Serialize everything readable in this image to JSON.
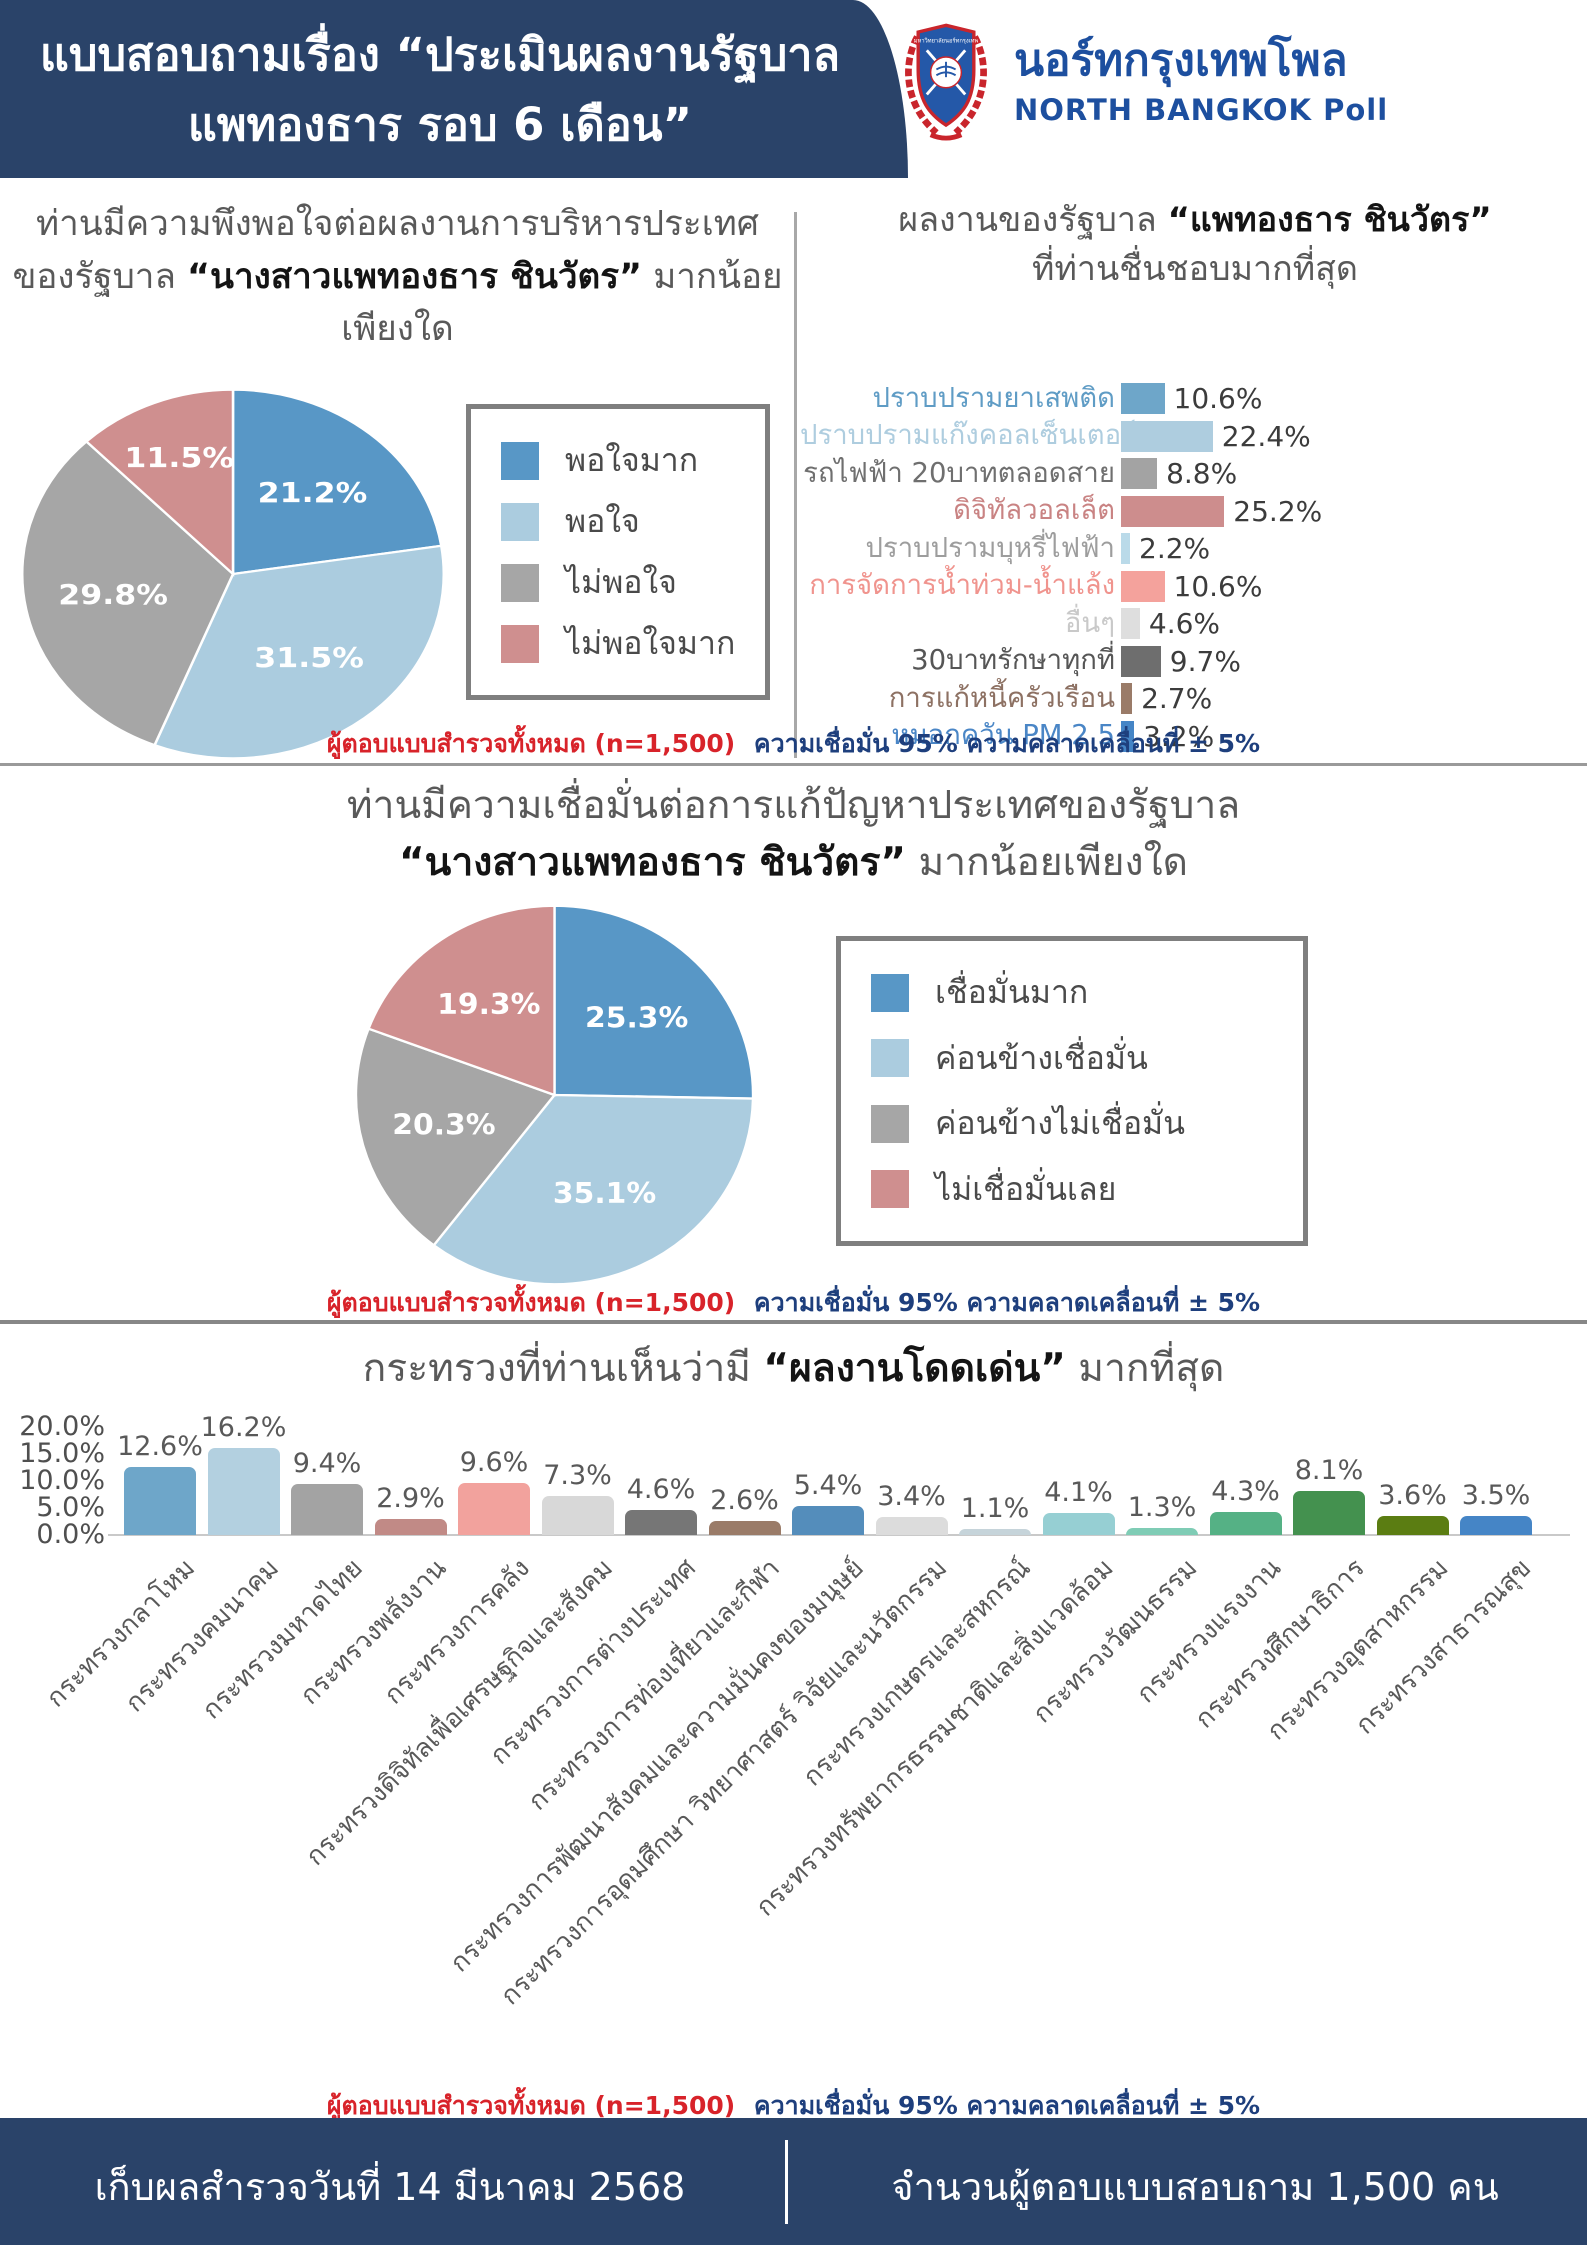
{
  "header": {
    "title_line1": "แบบสอบถามเรื่อง “ประเมินผลงานรัฐบาล",
    "title_line2": "แพทองธาร รอบ 6 เดือน”",
    "org_name_th": "นอร์ทกรุงเทพโพล",
    "org_name_en": "NORTH BANGKOK Poll",
    "crest_text": "มหาวิทยาลัยนอร์ทกรุงเทพ"
  },
  "colors": {
    "navy": "#2a4369",
    "accent_red": "#d8232a",
    "note_blue": "#1e3f7d",
    "text_gray": "#595959",
    "logo_blue": "#1d4f9f"
  },
  "q1": {
    "normal1": "ท่านมีความพึงพอใจต่อผลงานการบริหารประเทศของรัฐบาล ",
    "bold": "“นางสาวแพทองธาร ชินวัตร”",
    "normal2": " มากน้อยเพียงใด"
  },
  "q2": {
    "normal1": "ผลงานของรัฐบาล ",
    "bold": "“แพทองธาร ชินวัตร”",
    "line2": "ที่ท่านชื่นชอบมากที่สุด"
  },
  "q3": {
    "line1": "ท่านมีความเชื่อมั่นต่อการแก้ปัญหาประเทศของรัฐบาล",
    "bold": "“นางสาวแพทองธาร ชินวัตร”",
    "normal2": " มากน้อยเพียงใด"
  },
  "q4": {
    "normal1": "กระทรวงที่ท่านเห็นว่ามี ",
    "bold": "“ผลงานโดดเด่น”",
    "normal2": " มากที่สุด"
  },
  "note": {
    "red": "ผู้ตอบแบบสำรวจทั้งหมด (n=1,500)",
    "blue": "ความเชื่อมั่น 95% ความคลาดเคลื่อนที่ ± 5%"
  },
  "footer": {
    "left": "เก็บผลสำรวจวันที่ 14 มีนาคม 2568",
    "right": "จำนวนผู้ตอบแบบสอบถาม 1,500 คน"
  },
  "chart_data": [
    {
      "type": "pie",
      "title": "ท่านมีความพึงพอใจต่อผลงานการบริหารประเทศของรัฐบาล “นางสาวแพทองธาร ชินวัตร” มากน้อยเพียงใด",
      "labels": [
        "พอใจมาก",
        "พอใจ",
        "ไม่พอใจ",
        "ไม่พอใจมาก"
      ],
      "values": [
        21.2,
        31.5,
        29.8,
        11.5
      ],
      "colors": [
        "#5897c6",
        "#abccdf",
        "#a6a6a6",
        "#cf8f8f"
      ],
      "legend_position": "right",
      "start_angle": "12-oclock-clockwise"
    },
    {
      "type": "bar",
      "orientation": "horizontal",
      "title": "ผลงานของรัฐบาล “แพทองธาร ชินวัตร” ที่ท่านชื่นชอบมากที่สุด",
      "categories": [
        "ปราบปรามยาเสพติด",
        "ปราบปรามแก๊งคอลเซ็นเตอร์",
        "รถไฟฟ้า 20บาทตลอดสาย",
        "ดิจิทัลวอลเล็ต",
        "ปราบปรามบุหรี่ไฟฟ้า",
        "การจัดการน้ำท่วม-น้ำแล้ง",
        "อื่นๆ",
        "30บาทรักษาทุกที่",
        "การแก้หนี้ครัวเรือน",
        "หมอกควัน PM 2.5"
      ],
      "values": [
        10.6,
        22.4,
        8.8,
        25.2,
        2.2,
        10.6,
        4.6,
        9.7,
        2.7,
        3.2
      ],
      "label_colors": [
        "#5f9cc5",
        "#aecddf",
        "#6f6f6f",
        "#c98383",
        "#9d9d9d",
        "#f0948e",
        "#c9c9c9",
        "#565656",
        "#8d7163",
        "#4a86c6"
      ],
      "bar_colors": [
        "#6ea6c9",
        "#aecddf",
        "#a3a3a3",
        "#cd8d8d",
        "#badae9",
        "#f4a29c",
        "#dedede",
        "#6e6e6e",
        "#9a7b68",
        "#4585c6"
      ],
      "xlim": [
        0,
        26
      ]
    },
    {
      "type": "pie",
      "title": "ท่านมีความเชื่อมั่นต่อการแก้ปัญหาประเทศของรัฐบาล “นางสาวแพทองธาร ชินวัตร” มากน้อยเพียงใด",
      "labels": [
        "เชื่อมั่นมาก",
        "ค่อนข้างเชื่อมั่น",
        "ค่อนข้างไม่เชื่อมั่น",
        "ไม่เชื่อมั่นเลย"
      ],
      "values": [
        25.3,
        35.1,
        20.3,
        19.3
      ],
      "colors": [
        "#5897c6",
        "#abccdf",
        "#a6a6a6",
        "#cf8f8f"
      ],
      "legend_position": "right",
      "start_angle": "12-oclock-clockwise"
    },
    {
      "type": "bar",
      "orientation": "vertical",
      "title": "กระทรวงที่ท่านเห็นว่ามี “ผลงานโดดเด่น” มากที่สุด",
      "categories": [
        "กระทรวงกลาโหม",
        "กระทรวงคมนาคม",
        "กระทรวงมหาดไทย",
        "กระทรวงพลังงาน",
        "กระทรวงการคลัง",
        "กระทรวงดิจิทัลเพื่อเศรษฐกิจและสังคม",
        "กระทรวงการต่างประเทศ",
        "กระทรวงการท่องเที่ยวและกีฬา",
        "กระทรวงการพัฒนาสังคมและความมั่นคงของมนุษย์",
        "กระทรวงการอุดมศึกษา วิทยาศาสตร์ วิจัยและนวัตกรรม",
        "กระทรวงเกษตรและสหกรณ์",
        "กระทรวงทรัพยากรธรรมชาติและสิ่งแวดล้อม",
        "กระทรวงวัฒนธรรม",
        "กระทรวงแรงงาน",
        "กระทรวงศึกษาธิการ",
        "กระทรวงอุตสาหกรรม",
        "กระทรวงสาธารณสุข"
      ],
      "values": [
        12.6,
        16.2,
        9.4,
        2.9,
        9.6,
        7.3,
        4.6,
        2.6,
        5.4,
        3.4,
        1.1,
        4.1,
        1.3,
        4.3,
        8.1,
        3.6,
        3.5
      ],
      "colors": [
        "#6ea6c9",
        "#b3d0e0",
        "#a3a3a3",
        "#c18a86",
        "#f2a29d",
        "#d8d8d8",
        "#767676",
        "#9a7b68",
        "#548dbb",
        "#dcdcdc",
        "#c6d4da",
        "#96cfd3",
        "#7fccb5",
        "#55b185",
        "#44914f",
        "#5b7d12",
        "#4585c6"
      ],
      "y_ticks": [
        "20.0%",
        "15.0%",
        "10.0%",
        "5.0%",
        "0.0%"
      ],
      "ylim": [
        0,
        20
      ],
      "grid": false
    }
  ]
}
